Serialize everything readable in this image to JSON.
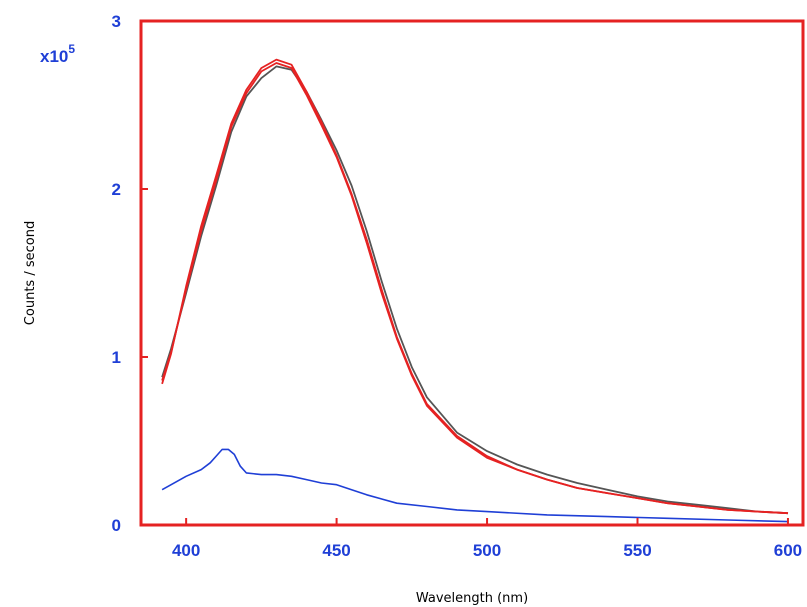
{
  "chart_data": {
    "type": "line",
    "title": "",
    "xlabel": "Wavelength (nm)",
    "ylabel": "Counts / second",
    "y_multiplier_base": "x10",
    "y_multiplier_exponent": "5",
    "xlim": [
      385,
      605
    ],
    "ylim": [
      0,
      3
    ],
    "x_ticks": [
      400,
      450,
      500,
      550,
      600
    ],
    "y_ticks": [
      0,
      1,
      2,
      3
    ],
    "grid": false,
    "legend": "none",
    "colors": {
      "axis_frame": "#e52222",
      "tick_labels": "#1f3fd6",
      "axis_title": "#000000"
    },
    "series": [
      {
        "color": "#555555",
        "x": [
          392,
          395,
          400,
          405,
          410,
          415,
          420,
          425,
          430,
          435,
          440,
          445,
          450,
          455,
          460,
          465,
          470,
          475,
          480,
          490,
          500,
          510,
          520,
          530,
          540,
          550,
          560,
          570,
          580,
          590,
          600
        ],
        "y": [
          0.88,
          1.05,
          1.38,
          1.72,
          2.02,
          2.34,
          2.55,
          2.66,
          2.73,
          2.71,
          2.58,
          2.41,
          2.23,
          2.02,
          1.75,
          1.45,
          1.17,
          0.94,
          0.76,
          0.55,
          0.44,
          0.36,
          0.3,
          0.25,
          0.21,
          0.17,
          0.14,
          0.12,
          0.1,
          0.08,
          0.07
        ]
      },
      {
        "color": "#e52222",
        "x": [
          392,
          395,
          400,
          405,
          410,
          415,
          420,
          425,
          430,
          435,
          440,
          445,
          450,
          455,
          460,
          465,
          470,
          475,
          480,
          490,
          500,
          510,
          520,
          530,
          540,
          550,
          560,
          570,
          580,
          590,
          600
        ],
        "y": [
          0.86,
          1.03,
          1.4,
          1.75,
          2.05,
          2.37,
          2.57,
          2.7,
          2.75,
          2.72,
          2.56,
          2.38,
          2.19,
          1.96,
          1.68,
          1.38,
          1.11,
          0.89,
          0.71,
          0.52,
          0.4,
          0.33,
          0.27,
          0.22,
          0.19,
          0.16,
          0.13,
          0.11,
          0.09,
          0.08,
          0.07
        ]
      },
      {
        "color": "#e52222",
        "x": [
          392,
          395,
          400,
          405,
          410,
          415,
          420,
          425,
          430,
          435,
          440,
          445,
          450,
          455,
          460,
          465,
          470,
          475,
          480,
          490,
          500,
          510,
          520,
          530,
          540,
          550,
          560,
          570,
          580,
          590,
          600
        ],
        "y": [
          0.84,
          1.02,
          1.42,
          1.78,
          2.08,
          2.39,
          2.59,
          2.72,
          2.77,
          2.74,
          2.58,
          2.4,
          2.2,
          1.97,
          1.7,
          1.4,
          1.12,
          0.9,
          0.72,
          0.53,
          0.41,
          0.33,
          0.27,
          0.22,
          0.19,
          0.16,
          0.13,
          0.11,
          0.09,
          0.08,
          0.07
        ]
      },
      {
        "color": "#1f3fd6",
        "x": [
          392,
          395,
          400,
          405,
          408,
          410,
          412,
          414,
          416,
          418,
          420,
          425,
          430,
          435,
          440,
          445,
          450,
          455,
          460,
          470,
          480,
          490,
          500,
          520,
          540,
          560,
          580,
          600
        ],
        "y": [
          0.21,
          0.24,
          0.29,
          0.33,
          0.37,
          0.41,
          0.45,
          0.45,
          0.42,
          0.35,
          0.31,
          0.3,
          0.3,
          0.29,
          0.27,
          0.25,
          0.24,
          0.21,
          0.18,
          0.13,
          0.11,
          0.09,
          0.08,
          0.06,
          0.05,
          0.04,
          0.03,
          0.02
        ]
      }
    ]
  }
}
